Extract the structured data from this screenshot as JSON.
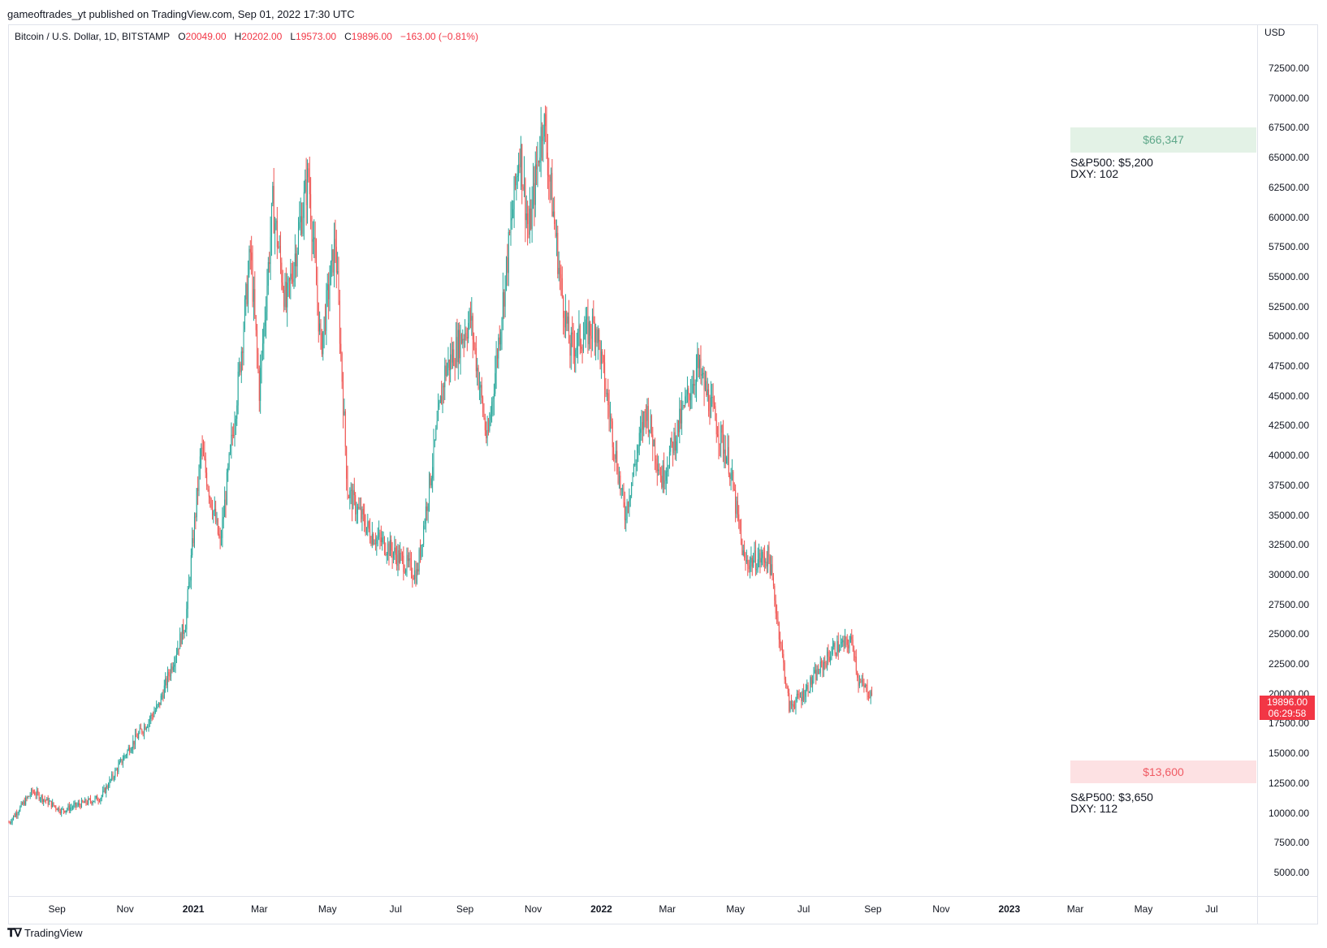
{
  "header": {
    "published": "gameoftrades_yt published on TradingView.com, Sep 01, 2022 17:30 UTC"
  },
  "legend": {
    "symbol": "Bitcoin / U.S. Dollar, 1D, BITSTAMP",
    "o_label": "O",
    "o_value": "20049.00",
    "h_label": "H",
    "h_value": "20202.00",
    "l_label": "L",
    "l_value": "19573.00",
    "c_label": "C",
    "c_value": "19896.00",
    "change": "−163.00 (−0.81%)"
  },
  "axis": {
    "currency": "USD",
    "y_ticks": [
      "72500.00",
      "70000.00",
      "67500.00",
      "65000.00",
      "62500.00",
      "60000.00",
      "57500.00",
      "55000.00",
      "52500.00",
      "50000.00",
      "47500.00",
      "45000.00",
      "42500.00",
      "40000.00",
      "37500.00",
      "35000.00",
      "32500.00",
      "30000.00",
      "27500.00",
      "25000.00",
      "22500.00",
      "20000.00",
      "17500.00",
      "15000.00",
      "12500.00",
      "10000.00",
      "7500.00",
      "5000.00"
    ],
    "x_ticks": [
      "Sep",
      "Nov",
      "2021",
      "Mar",
      "May",
      "Jul",
      "Sep",
      "Nov",
      "2022",
      "Mar",
      "May",
      "Jul",
      "Sep",
      "Nov",
      "2023",
      "Mar",
      "May",
      "Jul"
    ]
  },
  "price_tag": {
    "price": "19896.00",
    "countdown": "06:29:58"
  },
  "zones": {
    "top": {
      "label": "$66,347",
      "note1": "S&P500: $5,200",
      "note2": "DXY: 102"
    },
    "bottom": {
      "label": "$13,600",
      "note1": "S&P500: $3,650",
      "note2": "DXY: 112"
    }
  },
  "footer": {
    "brand": "TradingView",
    "icon": "tradingview-logo-icon"
  },
  "colors": {
    "up": "#26a69a",
    "down": "#ef5350",
    "accent_red": "#f23645"
  },
  "chart_data": {
    "type": "candlestick",
    "title": "Bitcoin / U.S. Dollar, 1D, BITSTAMP",
    "ylabel": "USD",
    "ylim": [
      3000,
      75000
    ],
    "x_range": [
      "2020-07-20",
      "2023-08-10"
    ],
    "close_path": [
      [
        "2020-07-20",
        9200
      ],
      [
        "2020-08-10",
        11800
      ],
      [
        "2020-09-05",
        10200
      ],
      [
        "2020-10-10",
        11300
      ],
      [
        "2020-11-05",
        15500
      ],
      [
        "2020-12-01",
        19000
      ],
      [
        "2020-12-25",
        26000
      ],
      [
        "2021-01-08",
        40500
      ],
      [
        "2021-01-25",
        32500
      ],
      [
        "2021-02-10",
        46000
      ],
      [
        "2021-02-21",
        57000
      ],
      [
        "2021-03-01",
        45500
      ],
      [
        "2021-03-13",
        61000
      ],
      [
        "2021-03-25",
        52500
      ],
      [
        "2021-04-14",
        63500
      ],
      [
        "2021-04-25",
        49000
      ],
      [
        "2021-05-08",
        58000
      ],
      [
        "2021-05-19",
        37000
      ],
      [
        "2021-06-08",
        33500
      ],
      [
        "2021-06-22",
        32500
      ],
      [
        "2021-07-20",
        30000
      ],
      [
        "2021-08-14",
        47000
      ],
      [
        "2021-09-06",
        51500
      ],
      [
        "2021-09-21",
        41000
      ],
      [
        "2021-10-20",
        66000
      ],
      [
        "2021-10-28",
        58500
      ],
      [
        "2021-11-10",
        68500
      ],
      [
        "2021-11-26",
        54000
      ],
      [
        "2021-12-04",
        49000
      ],
      [
        "2021-12-27",
        51000
      ],
      [
        "2022-01-22",
        35000
      ],
      [
        "2022-02-10",
        44000
      ],
      [
        "2022-02-24",
        38000
      ],
      [
        "2022-03-28",
        47500
      ],
      [
        "2022-04-25",
        39500
      ],
      [
        "2022-05-09",
        31000
      ],
      [
        "2022-05-31",
        31500
      ],
      [
        "2022-06-18",
        18900
      ],
      [
        "2022-06-30",
        19900
      ],
      [
        "2022-07-28",
        23800
      ],
      [
        "2022-08-14",
        24400
      ],
      [
        "2022-08-19",
        21000
      ],
      [
        "2022-08-31",
        19896
      ]
    ]
  }
}
